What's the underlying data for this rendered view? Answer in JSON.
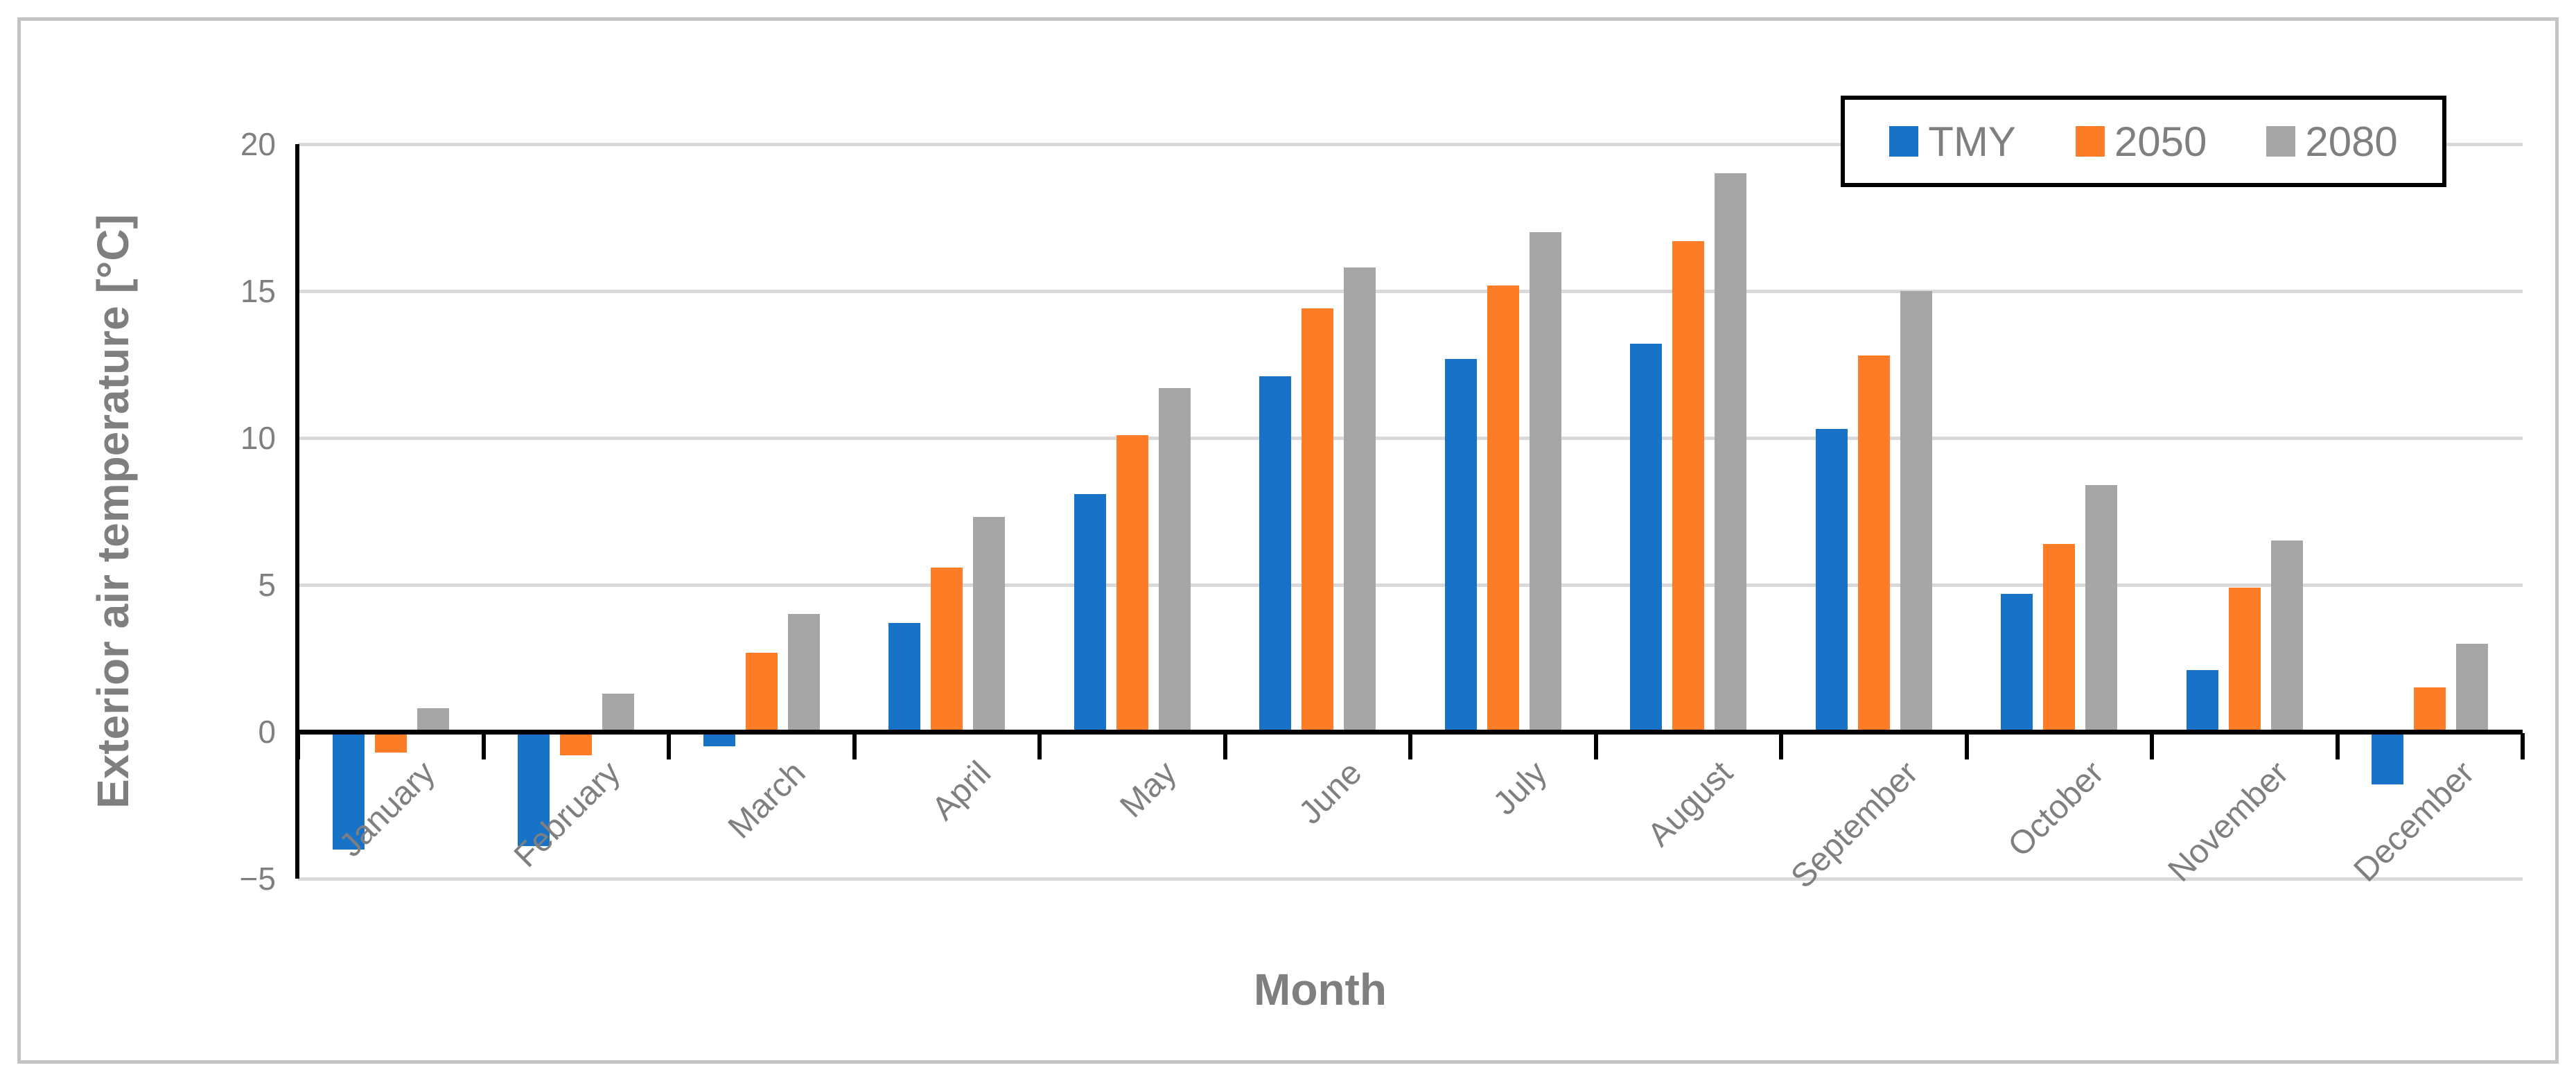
{
  "chart_data": {
    "type": "bar",
    "title": "",
    "xlabel": "Month",
    "ylabel": "Exterior air temperature [°C]",
    "categories": [
      "January",
      "February",
      "March",
      "April",
      "May",
      "June",
      "July",
      "August",
      "September",
      "October",
      "November",
      "December"
    ],
    "series": [
      {
        "name": "TMY",
        "color": "#1872C8",
        "values": [
          -4.0,
          -3.9,
          -0.5,
          3.7,
          8.1,
          12.1,
          12.7,
          13.2,
          10.3,
          4.7,
          2.1,
          -1.8
        ]
      },
      {
        "name": "2050",
        "color": "#FD7D26",
        "values": [
          -0.7,
          -0.8,
          2.7,
          5.6,
          10.1,
          14.4,
          15.2,
          16.7,
          12.8,
          6.4,
          4.9,
          1.5
        ]
      },
      {
        "name": "2080",
        "color": "#A6A6A6",
        "values": [
          0.8,
          1.3,
          4.0,
          7.3,
          11.7,
          15.8,
          17.0,
          19.0,
          15.0,
          8.4,
          6.5,
          3.0
        ]
      }
    ],
    "ylim": [
      -5,
      20
    ],
    "ytick_values": [
      20,
      15,
      10,
      5,
      0,
      -5
    ],
    "ytick_labels": [
      "20",
      "15",
      "10",
      "5",
      "0",
      "−5"
    ],
    "grid": true,
    "legend_position": "top-right",
    "colors": {
      "gridline": "#D9D9D9",
      "axis_line": "#000000",
      "text": "#7F7F7F",
      "frame_border": "#C3C3C3",
      "legend_border": "#000000",
      "background": "#FFFFFF"
    }
  }
}
